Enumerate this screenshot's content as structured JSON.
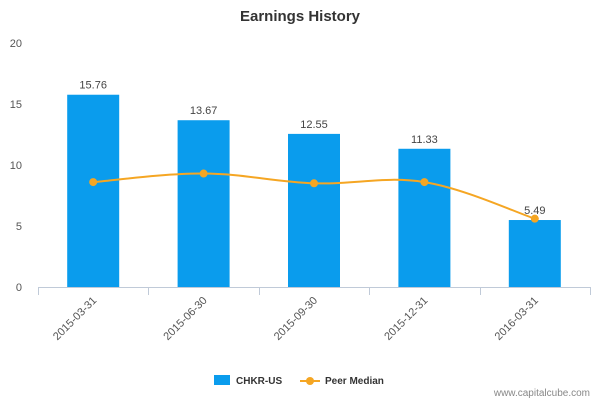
{
  "chart_data": {
    "type": "bar",
    "title": "Earnings History",
    "xlabel": "",
    "ylabel": "",
    "ylim": [
      0,
      20
    ],
    "yticks": [
      0,
      5,
      10,
      15,
      20
    ],
    "categories": [
      "2015-03-31",
      "2015-06-30",
      "2015-09-30",
      "2015-12-31",
      "2016-03-31"
    ],
    "series": [
      {
        "name": "CHKR-US",
        "type": "bar",
        "color": "#0a9ced",
        "values": [
          15.76,
          13.67,
          12.55,
          11.33,
          5.49
        ],
        "labels": [
          "15.76",
          "13.67",
          "12.55",
          "11.33",
          "5.49"
        ]
      },
      {
        "name": "Peer Median",
        "type": "line",
        "color": "#f5a623",
        "values": [
          8.6,
          9.3,
          8.5,
          8.6,
          5.6
        ]
      }
    ],
    "legend": "bottom-center",
    "grid": false
  },
  "watermark": "www.capitalcube.com"
}
